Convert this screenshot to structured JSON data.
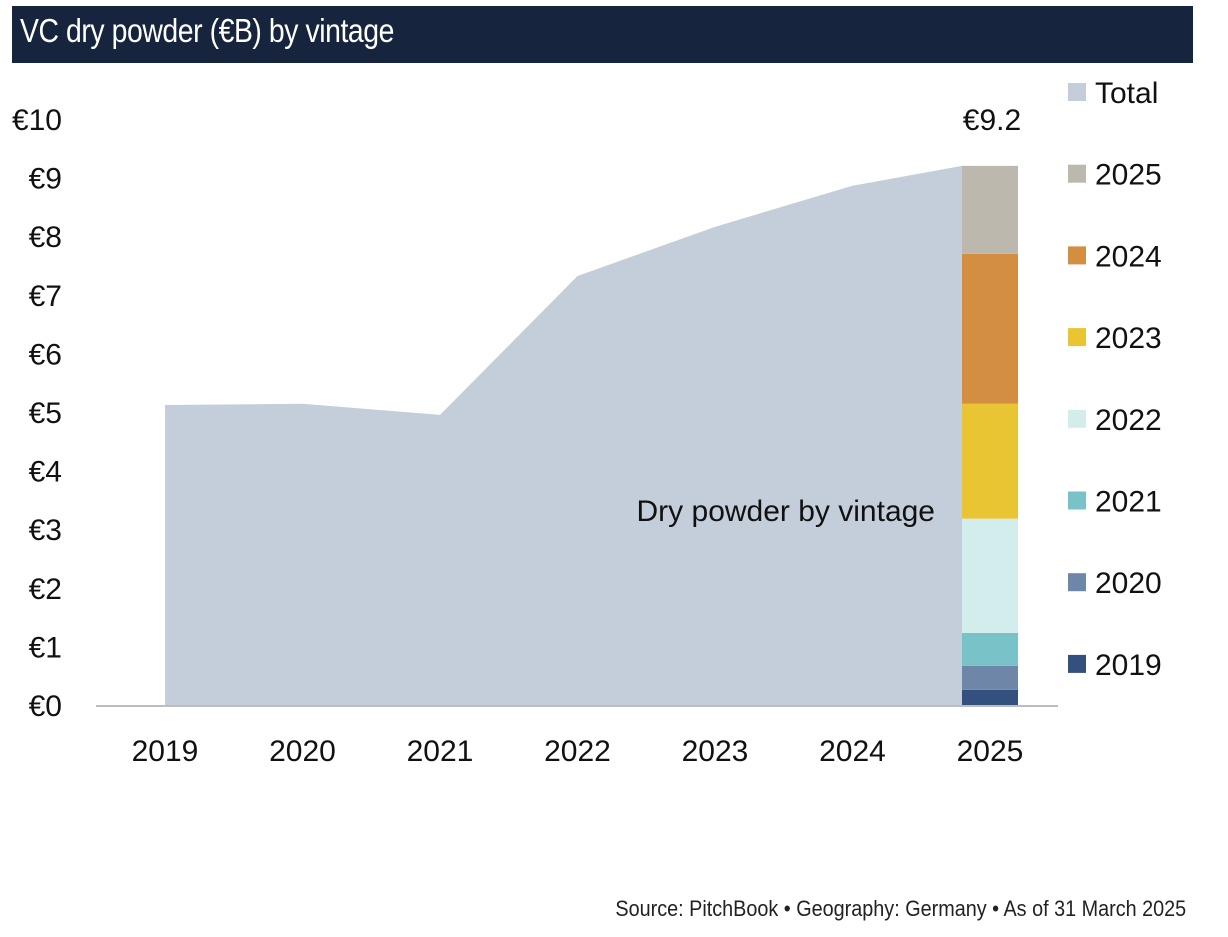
{
  "header": {
    "title": "VC dry powder (€B) by vintage"
  },
  "footer": {
    "source": "Source: PitchBook • Geography: Germany • As of 31 March 2025"
  },
  "chart_data": {
    "type": "area",
    "title": "VC dry powder (€B) by vintage",
    "xlabel": "",
    "ylabel": "",
    "categories": [
      "2019",
      "2020",
      "2021",
      "2022",
      "2023",
      "2024",
      "2025"
    ],
    "ylim": [
      0,
      10
    ],
    "yticks": [
      0,
      1,
      2,
      3,
      4,
      5,
      6,
      7,
      8,
      9,
      10
    ],
    "ytick_labels": [
      "€0",
      "€1",
      "€2",
      "€3",
      "€4",
      "€5",
      "€6",
      "€7",
      "€8",
      "€9",
      "€10"
    ],
    "grid": false,
    "series": [
      {
        "name": "Total",
        "kind": "area",
        "color": "#c3ceda",
        "values": [
          5.12,
          5.14,
          4.95,
          7.32,
          8.16,
          8.86,
          9.2
        ]
      }
    ],
    "stacked_bar": {
      "category": "2025",
      "label": "€9.2",
      "total": 9.2,
      "segments": [
        {
          "name": "2019",
          "value": 0.26,
          "color": "#34507e"
        },
        {
          "name": "2020",
          "value": 0.41,
          "color": "#6e87a8"
        },
        {
          "name": "2021",
          "value": 0.56,
          "color": "#79c3c8"
        },
        {
          "name": "2022",
          "value": 1.95,
          "color": "#d3ecec"
        },
        {
          "name": "2023",
          "value": 1.96,
          "color": "#e9c534"
        },
        {
          "name": "2024",
          "value": 2.56,
          "color": "#d48e42"
        },
        {
          "name": "2025",
          "value": 1.5,
          "color": "#bcb8ae"
        }
      ]
    },
    "annotation": "Dry powder by vintage",
    "legend": {
      "position": "right",
      "entries": [
        {
          "label": "Total",
          "color": "#c3ceda"
        },
        {
          "label": "2025",
          "color": "#bcb8ae"
        },
        {
          "label": "2024",
          "color": "#d48e42"
        },
        {
          "label": "2023",
          "color": "#e9c534"
        },
        {
          "label": "2022",
          "color": "#d3ecec"
        },
        {
          "label": "2021",
          "color": "#79c3c8"
        },
        {
          "label": "2020",
          "color": "#6e87a8"
        },
        {
          "label": "2019",
          "color": "#34507e"
        }
      ]
    }
  }
}
